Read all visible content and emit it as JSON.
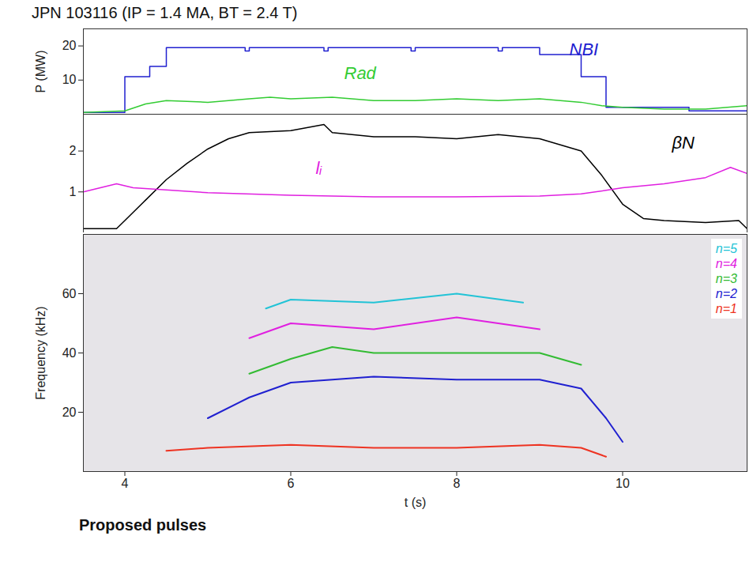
{
  "chart_data": [
    {
      "type": "line",
      "title": "JPN 103116   (IP = 1.4 MA, BT = 2.4 T)",
      "ylabel": "P (MW)",
      "xlim": [
        3.5,
        11.5
      ],
      "xticks": [
        4,
        6,
        8,
        10
      ],
      "ylim": [
        0,
        25
      ],
      "yticks": [
        10,
        20
      ],
      "tick_labels": "y",
      "series": [
        {
          "name": "NBI",
          "color": "#2020d0",
          "line_style": "step",
          "x": [
            3.5,
            4.0,
            4.3,
            4.5,
            5.45,
            5.5,
            6.4,
            6.45,
            7.45,
            7.5,
            8.5,
            8.55,
            9.0,
            9.5,
            9.8,
            10.8,
            11.5
          ],
          "values": [
            0.5,
            11,
            14,
            19.5,
            18.5,
            19.5,
            18.5,
            19.5,
            18.5,
            19.5,
            18.5,
            19.5,
            17.5,
            11,
            2,
            1,
            1
          ]
        },
        {
          "name": "Rad",
          "color": "#33cc33",
          "x": [
            3.5,
            4.0,
            4.25,
            4.5,
            5.0,
            5.5,
            5.75,
            6.0,
            6.5,
            7.0,
            7.5,
            8.0,
            8.5,
            9.0,
            9.5,
            9.75,
            10.0,
            10.5,
            11.0,
            11.5
          ],
          "values": [
            0.5,
            1,
            3,
            4,
            3.5,
            4.5,
            5,
            4.5,
            5,
            4,
            4,
            4.5,
            4,
            4.5,
            3.5,
            2.5,
            2,
            1.5,
            1.5,
            2.5
          ]
        }
      ]
    },
    {
      "type": "line",
      "xlim": [
        3.5,
        11.5
      ],
      "xticks": [
        4,
        6,
        8,
        10
      ],
      "ylim": [
        0,
        2.9
      ],
      "yticks": [
        1,
        2
      ],
      "tick_labels": "y",
      "series": [
        {
          "name": "βN",
          "color": "#000000",
          "x": [
            3.5,
            3.9,
            4.0,
            4.25,
            4.5,
            4.75,
            5.0,
            5.25,
            5.5,
            6.0,
            6.4,
            6.5,
            7.0,
            7.5,
            8.0,
            8.5,
            9.0,
            9.5,
            9.75,
            10.0,
            10.25,
            10.5,
            11.0,
            11.4,
            11.5
          ],
          "values": [
            0.1,
            0.1,
            0.3,
            0.8,
            1.3,
            1.7,
            2.05,
            2.3,
            2.45,
            2.5,
            2.65,
            2.45,
            2.35,
            2.35,
            2.3,
            2.4,
            2.3,
            2.0,
            1.4,
            0.7,
            0.35,
            0.3,
            0.25,
            0.3,
            0.1
          ]
        },
        {
          "name": "lᵢ",
          "color": "#e020e0",
          "x": [
            3.5,
            3.9,
            4.1,
            4.5,
            5.0,
            6.0,
            7.0,
            8.0,
            9.0,
            9.5,
            10.0,
            10.5,
            11.0,
            11.3,
            11.5
          ],
          "values": [
            1.0,
            1.2,
            1.1,
            1.05,
            0.98,
            0.92,
            0.88,
            0.88,
            0.9,
            0.95,
            1.1,
            1.2,
            1.35,
            1.6,
            1.45
          ]
        }
      ]
    },
    {
      "type": "spectrogram",
      "xlabel": "t (s)",
      "ylabel": "Frequency (kHz)",
      "xlim": [
        3.5,
        11.5
      ],
      "xticks": [
        4,
        6,
        8,
        10
      ],
      "ylim": [
        0,
        80
      ],
      "yticks": [
        20,
        40,
        60
      ],
      "legend": "top-right",
      "annotation": "Proposed pulses",
      "series": [
        {
          "name": "n=5",
          "color": "#22c3d6",
          "x": [
            5.7,
            6.0,
            7.0,
            8.0,
            8.8
          ],
          "values": [
            55,
            58,
            57,
            60,
            57
          ]
        },
        {
          "name": "n=4",
          "color": "#e020e0",
          "x": [
            5.5,
            6.0,
            7.0,
            8.0,
            9.0
          ],
          "values": [
            45,
            50,
            48,
            52,
            48
          ]
        },
        {
          "name": "n=3",
          "color": "#33bb33",
          "x": [
            5.5,
            6.0,
            6.5,
            7.0,
            8.0,
            9.0,
            9.5
          ],
          "values": [
            33,
            38,
            42,
            40,
            40,
            40,
            36
          ]
        },
        {
          "name": "n=2",
          "color": "#2020d0",
          "x": [
            5.0,
            5.5,
            6.0,
            7.0,
            8.0,
            9.0,
            9.5,
            9.8,
            10.0
          ],
          "values": [
            18,
            25,
            30,
            32,
            31,
            31,
            28,
            18,
            10
          ]
        },
        {
          "name": "n=1",
          "color": "#ee3322",
          "x": [
            4.5,
            5.0,
            6.0,
            7.0,
            8.0,
            9.0,
            9.5,
            9.8
          ],
          "values": [
            7,
            8,
            9,
            8,
            8,
            9,
            8,
            5
          ]
        }
      ]
    }
  ]
}
